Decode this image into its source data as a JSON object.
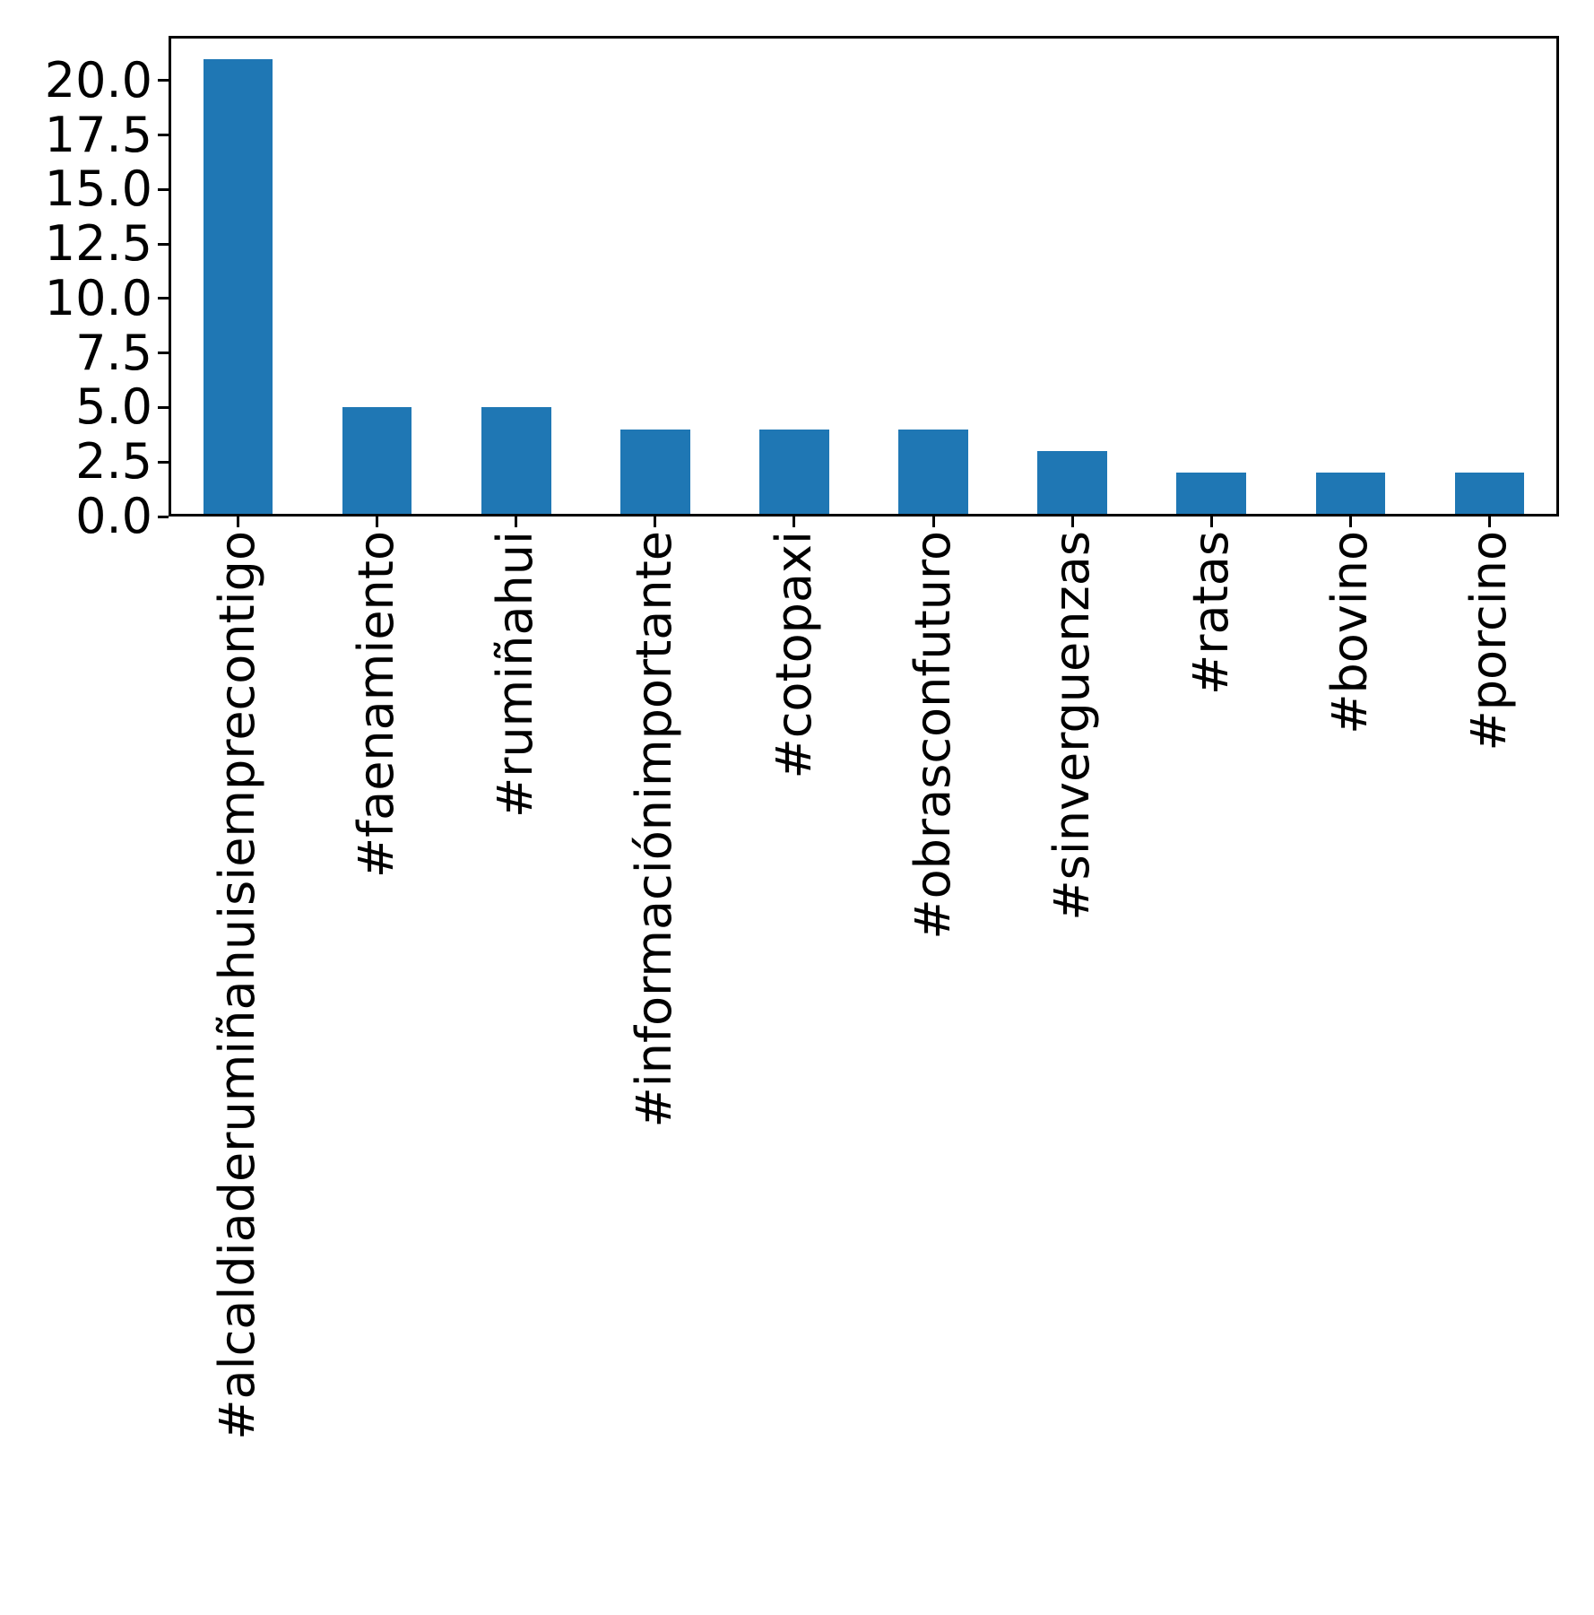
{
  "chart_data": {
    "type": "bar",
    "title": "",
    "xlabel": "",
    "ylabel": "",
    "categories": [
      "#alcaldiaderumiñahuisiemprecontigo",
      "#faenamiento",
      "#rumiñahui",
      "#informaciónimportante",
      "#cotopaxi",
      "#obrasconfuturo",
      "#sinverguenzas",
      "#ratas",
      "#bovino",
      "#porcino"
    ],
    "values": [
      21,
      5,
      5,
      4,
      4,
      4,
      3,
      2,
      2,
      2
    ],
    "ylim": [
      0,
      22.05
    ],
    "yticks": [
      0,
      2.5,
      5,
      7.5,
      10,
      12.5,
      15,
      17.5,
      20
    ],
    "ytick_labels": [
      "0.0",
      "2.5",
      "5.0",
      "7.5",
      "10.0",
      "12.5",
      "15.0",
      "17.5",
      "20.0"
    ],
    "xtick_rotation_deg": 90,
    "bar_width_fraction": 0.5,
    "bar_color": "#1f77b4",
    "axis_color": "#000000",
    "text_color": "#000000",
    "background_color": "#ffffff",
    "grid": false,
    "legend": null
  }
}
